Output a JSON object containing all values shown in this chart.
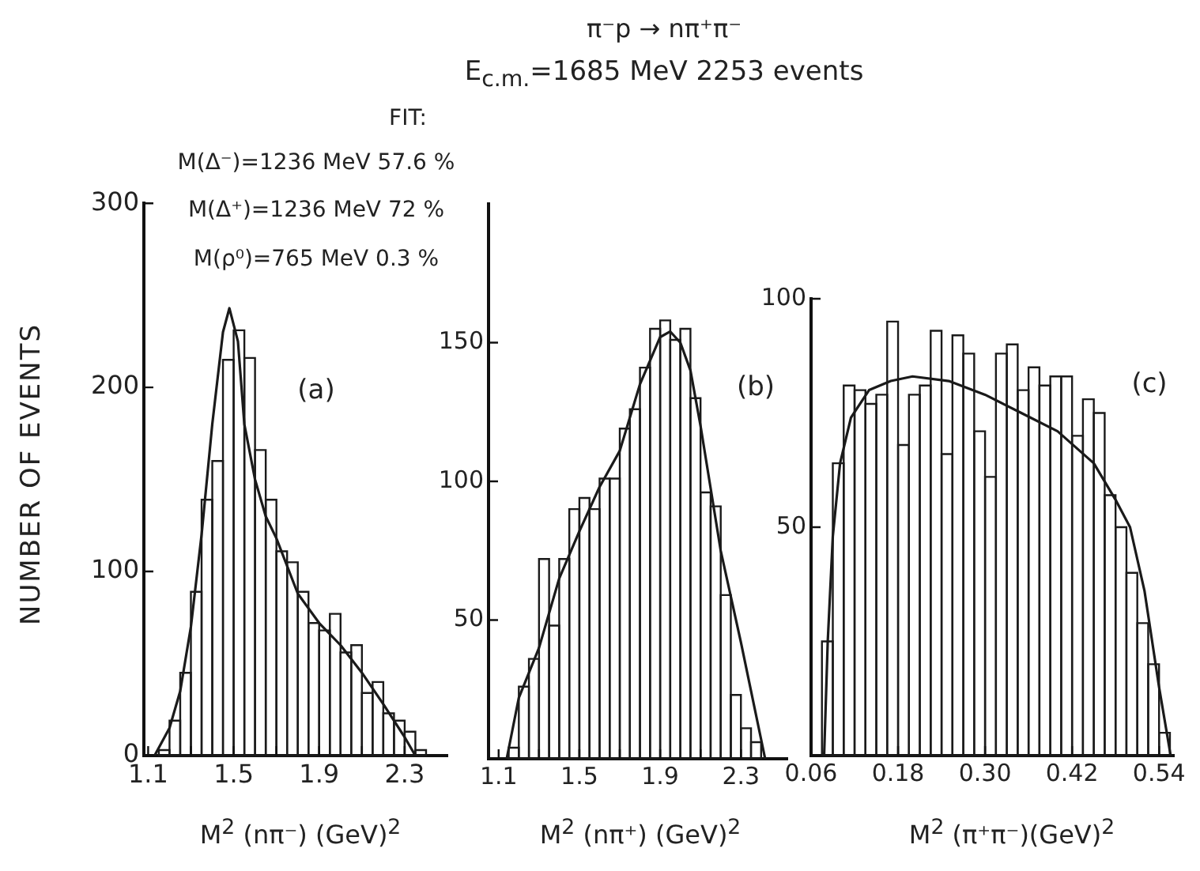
{
  "chart_data": [
    {
      "type": "other",
      "title": "π⁻p → nπ⁺π⁻",
      "subtitle": "E$_{c.m.}$=1685 MeV  2253 events"
    },
    {
      "type": "histogram",
      "ylabel": "NUMBER OF EVENTS",
      "xlabel": "M$^{2}$ (nπ⁻) (GeV)$^{2}$",
      "annotations": [
        "FIT:",
        "M(Δ⁻)=1236 MeV  57.6 %",
        "M(Δ⁺)=1236 MeV  72 %",
        "M(ρ⁰)=765 MeV    0.3 %",
        "(a)"
      ],
      "series": [
        {
          "type": "histogram",
          "color": "#1a1a1a",
          "bins": [
            1.15,
            1.2,
            1.25,
            1.3,
            1.35,
            1.4,
            1.45,
            1.5,
            1.55,
            1.6,
            1.65,
            1.7,
            1.75,
            1.8,
            1.85,
            1.9,
            1.95,
            2.0,
            2.05,
            2.1,
            2.15,
            2.2,
            2.25,
            2.3,
            2.35,
            2.4
          ],
          "values": [
            3,
            19,
            45,
            89,
            139,
            160,
            215,
            231,
            216,
            166,
            139,
            111,
            105,
            89,
            72,
            68,
            77,
            56,
            60,
            34,
            40,
            23,
            19,
            13,
            3
          ]
        },
        {
          "type": "line",
          "color": "#1a1a1a",
          "x": [
            1.13,
            1.2,
            1.25,
            1.3,
            1.35,
            1.4,
            1.45,
            1.48,
            1.52,
            1.55,
            1.6,
            1.65,
            1.7,
            1.8,
            1.9,
            2.0,
            2.1,
            2.2,
            2.3,
            2.35
          ],
          "values": [
            0,
            15,
            35,
            70,
            120,
            180,
            230,
            243,
            225,
            180,
            150,
            130,
            118,
            88,
            72,
            60,
            45,
            28,
            10,
            0
          ]
        }
      ],
      "xlim": [
        1.08,
        2.5
      ],
      "xticks": [
        1.1,
        {
          "value": 1.3,
          "label": null
        },
        1.5,
        {
          "value": 1.7,
          "label": null
        },
        1.9,
        {
          "value": 2.1,
          "label": null
        },
        2.3
      ],
      "ylim": [
        0,
        300
      ],
      "yticks": [
        0,
        100,
        200,
        300
      ],
      "grid": false,
      "legend": false,
      "marker": "none"
    },
    {
      "type": "histogram",
      "xlabel": "M$^{2}$ (nπ⁺)  (GeV)$^{2}$",
      "annotations": [
        "(b)"
      ],
      "series": [
        {
          "type": "histogram",
          "color": "#1a1a1a",
          "bins": [
            1.15,
            1.2,
            1.25,
            1.3,
            1.35,
            1.4,
            1.45,
            1.5,
            1.55,
            1.6,
            1.65,
            1.7,
            1.75,
            1.8,
            1.85,
            1.9,
            1.95,
            2.0,
            2.05,
            2.1,
            2.15,
            2.2,
            2.25,
            2.3,
            2.35,
            2.4
          ],
          "values": [
            4,
            26,
            36,
            72,
            48,
            72,
            90,
            94,
            90,
            101,
            101,
            119,
            126,
            141,
            155,
            158,
            151,
            155,
            130,
            96,
            91,
            59,
            23,
            11,
            6
          ]
        },
        {
          "type": "line",
          "color": "#1a1a1a",
          "x": [
            1.14,
            1.2,
            1.3,
            1.4,
            1.5,
            1.6,
            1.7,
            1.8,
            1.9,
            1.95,
            2.0,
            2.05,
            2.1,
            2.2,
            2.3,
            2.42
          ],
          "values": [
            0,
            22,
            40,
            65,
            82,
            98,
            111,
            135,
            152,
            154,
            150,
            140,
            120,
            75,
            42,
            0
          ]
        }
      ],
      "xlim": [
        1.05,
        2.53
      ],
      "xticks": [
        1.1,
        {
          "value": 1.3,
          "label": null
        },
        1.5,
        {
          "value": 1.7,
          "label": null
        },
        1.9,
        {
          "value": 2.1,
          "label": null
        },
        2.3
      ],
      "ylim": [
        0,
        200
      ],
      "yticks": [
        50,
        100,
        150
      ],
      "grid": false,
      "legend": false,
      "marker": "none"
    },
    {
      "type": "histogram",
      "xlabel": "M$^{2}$ (π⁺π⁻)(GeV)$^{2}$",
      "annotations": [
        "(c)"
      ],
      "series": [
        {
          "type": "histogram",
          "color": "#1a1a1a",
          "bins": [
            0.075,
            0.09,
            0.105,
            0.12,
            0.135,
            0.15,
            0.165,
            0.18,
            0.195,
            0.21,
            0.225,
            0.24,
            0.255,
            0.27,
            0.285,
            0.3,
            0.315,
            0.33,
            0.345,
            0.36,
            0.375,
            0.39,
            0.405,
            0.42,
            0.435,
            0.45,
            0.465,
            0.48,
            0.495,
            0.51,
            0.525,
            0.54,
            0.555
          ],
          "values": [
            25,
            64,
            81,
            80,
            77,
            79,
            95,
            68,
            79,
            81,
            93,
            66,
            92,
            88,
            71,
            61,
            88,
            90,
            80,
            85,
            81,
            83,
            83,
            70,
            78,
            75,
            57,
            50,
            40,
            29,
            20,
            5
          ]
        },
        {
          "type": "line",
          "color": "#1a1a1a",
          "x": [
            0.078,
            0.083,
            0.09,
            0.1,
            0.115,
            0.14,
            0.17,
            0.2,
            0.25,
            0.3,
            0.35,
            0.4,
            0.45,
            0.48,
            0.5,
            0.52,
            0.54,
            0.556
          ],
          "values": [
            0,
            25,
            48,
            64,
            74,
            80,
            82,
            83,
            82,
            79,
            75,
            71,
            64,
            56,
            50,
            36,
            15,
            0
          ]
        }
      ],
      "xlim": [
        0.06,
        0.56
      ],
      "xticks": [
        0.06,
        0.18,
        {
          "value": 0.3,
          "label": "0.30"
        },
        0.42,
        0.54
      ],
      "ylim": [
        0,
        100
      ],
      "yticks": [
        50,
        100
      ],
      "grid": false,
      "legend": false,
      "marker": "none"
    }
  ]
}
